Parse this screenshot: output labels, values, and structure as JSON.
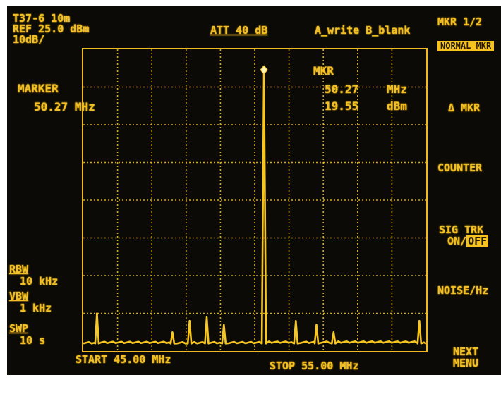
{
  "header": {
    "line1": "T37-6 10m",
    "ref": "REF 25.0 dBm",
    "scale": "10dB/",
    "atten": "ATT 40 dB",
    "traces": "A_write B_blank"
  },
  "marker": {
    "label": "MARKER",
    "value": "50.27",
    "unit": "MHz"
  },
  "marker_readout": {
    "title": "MKR",
    "freq": "50.27",
    "freq_unit": "MHz",
    "ampl": "19.55",
    "ampl_unit": "dBm"
  },
  "bandwidth": {
    "rbw_label": "RBW",
    "rbw_value": "10 kHz",
    "vbw_label": "VBW",
    "vbw_value": "1 kHz",
    "swp_label": "SWP",
    "swp_value": "10 s"
  },
  "footer": {
    "start": "START 45.00 MHz",
    "stop": "STOP 55.00 MHz"
  },
  "softkeys": {
    "title": "MKR 1/2",
    "normal": "NORMAL MKR",
    "delta": "Δ MKR",
    "counter": "COUNTER",
    "sigtrk": "SIG TRK",
    "sigtrk_state_on": "ON/",
    "sigtrk_state_off": "OFF",
    "noise": "NOISE/Hz",
    "next_line1": "NEXT",
    "next_line2": "MENU"
  },
  "colors": {
    "trace": "#f7c623",
    "background": "#0b0a06"
  },
  "chart_data": {
    "type": "line",
    "x_unit": "MHz",
    "y_unit": "dBm",
    "xlim": [
      45.0,
      55.0
    ],
    "ylim": [
      -55.0,
      25.0
    ],
    "grid": true,
    "peaks": [
      {
        "x": 45.4,
        "y": -45
      },
      {
        "x": 47.6,
        "y": -50
      },
      {
        "x": 48.1,
        "y": -47
      },
      {
        "x": 48.6,
        "y": -46
      },
      {
        "x": 49.1,
        "y": -48
      },
      {
        "x": 50.27,
        "y": 19.55
      },
      {
        "x": 51.2,
        "y": -47
      },
      {
        "x": 51.8,
        "y": -48
      },
      {
        "x": 52.3,
        "y": -50
      },
      {
        "x": 54.8,
        "y": -47
      }
    ],
    "noise_floor": -53
  }
}
